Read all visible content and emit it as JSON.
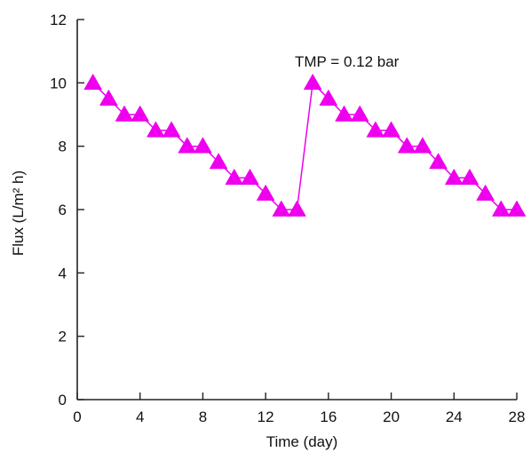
{
  "chart_data": {
    "type": "line",
    "xlabel": "Time (day)",
    "ylabel": "Flux (L/m² h)",
    "xlim": [
      0,
      28
    ],
    "ylim": [
      0,
      12
    ],
    "xticks": [
      0,
      4,
      8,
      12,
      16,
      20,
      24,
      28
    ],
    "yticks": [
      0,
      2,
      4,
      6,
      8,
      10,
      12
    ],
    "grid": false,
    "annotation": {
      "text": "TMP = 0.12 bar",
      "x": 15,
      "y": 10
    },
    "series": [
      {
        "marker": "triangle",
        "color": "#ee00ee",
        "points": [
          [
            1,
            10
          ],
          [
            2,
            9.5
          ],
          [
            3,
            9
          ],
          [
            4,
            9
          ],
          [
            5,
            8.5
          ],
          [
            6,
            8.5
          ],
          [
            7,
            8
          ],
          [
            8,
            8
          ],
          [
            9,
            7.5
          ],
          [
            10,
            7
          ],
          [
            11,
            7
          ],
          [
            12,
            6.5
          ],
          [
            13,
            6
          ],
          [
            14,
            6
          ],
          [
            15,
            10
          ],
          [
            16,
            9.5
          ],
          [
            17,
            9
          ],
          [
            18,
            9
          ],
          [
            19,
            8.5
          ],
          [
            20,
            8.5
          ],
          [
            21,
            8
          ],
          [
            22,
            8
          ],
          [
            23,
            7.5
          ],
          [
            24,
            7
          ],
          [
            25,
            7
          ],
          [
            26,
            6.5
          ],
          [
            27,
            6
          ],
          [
            28,
            6
          ]
        ]
      }
    ]
  }
}
